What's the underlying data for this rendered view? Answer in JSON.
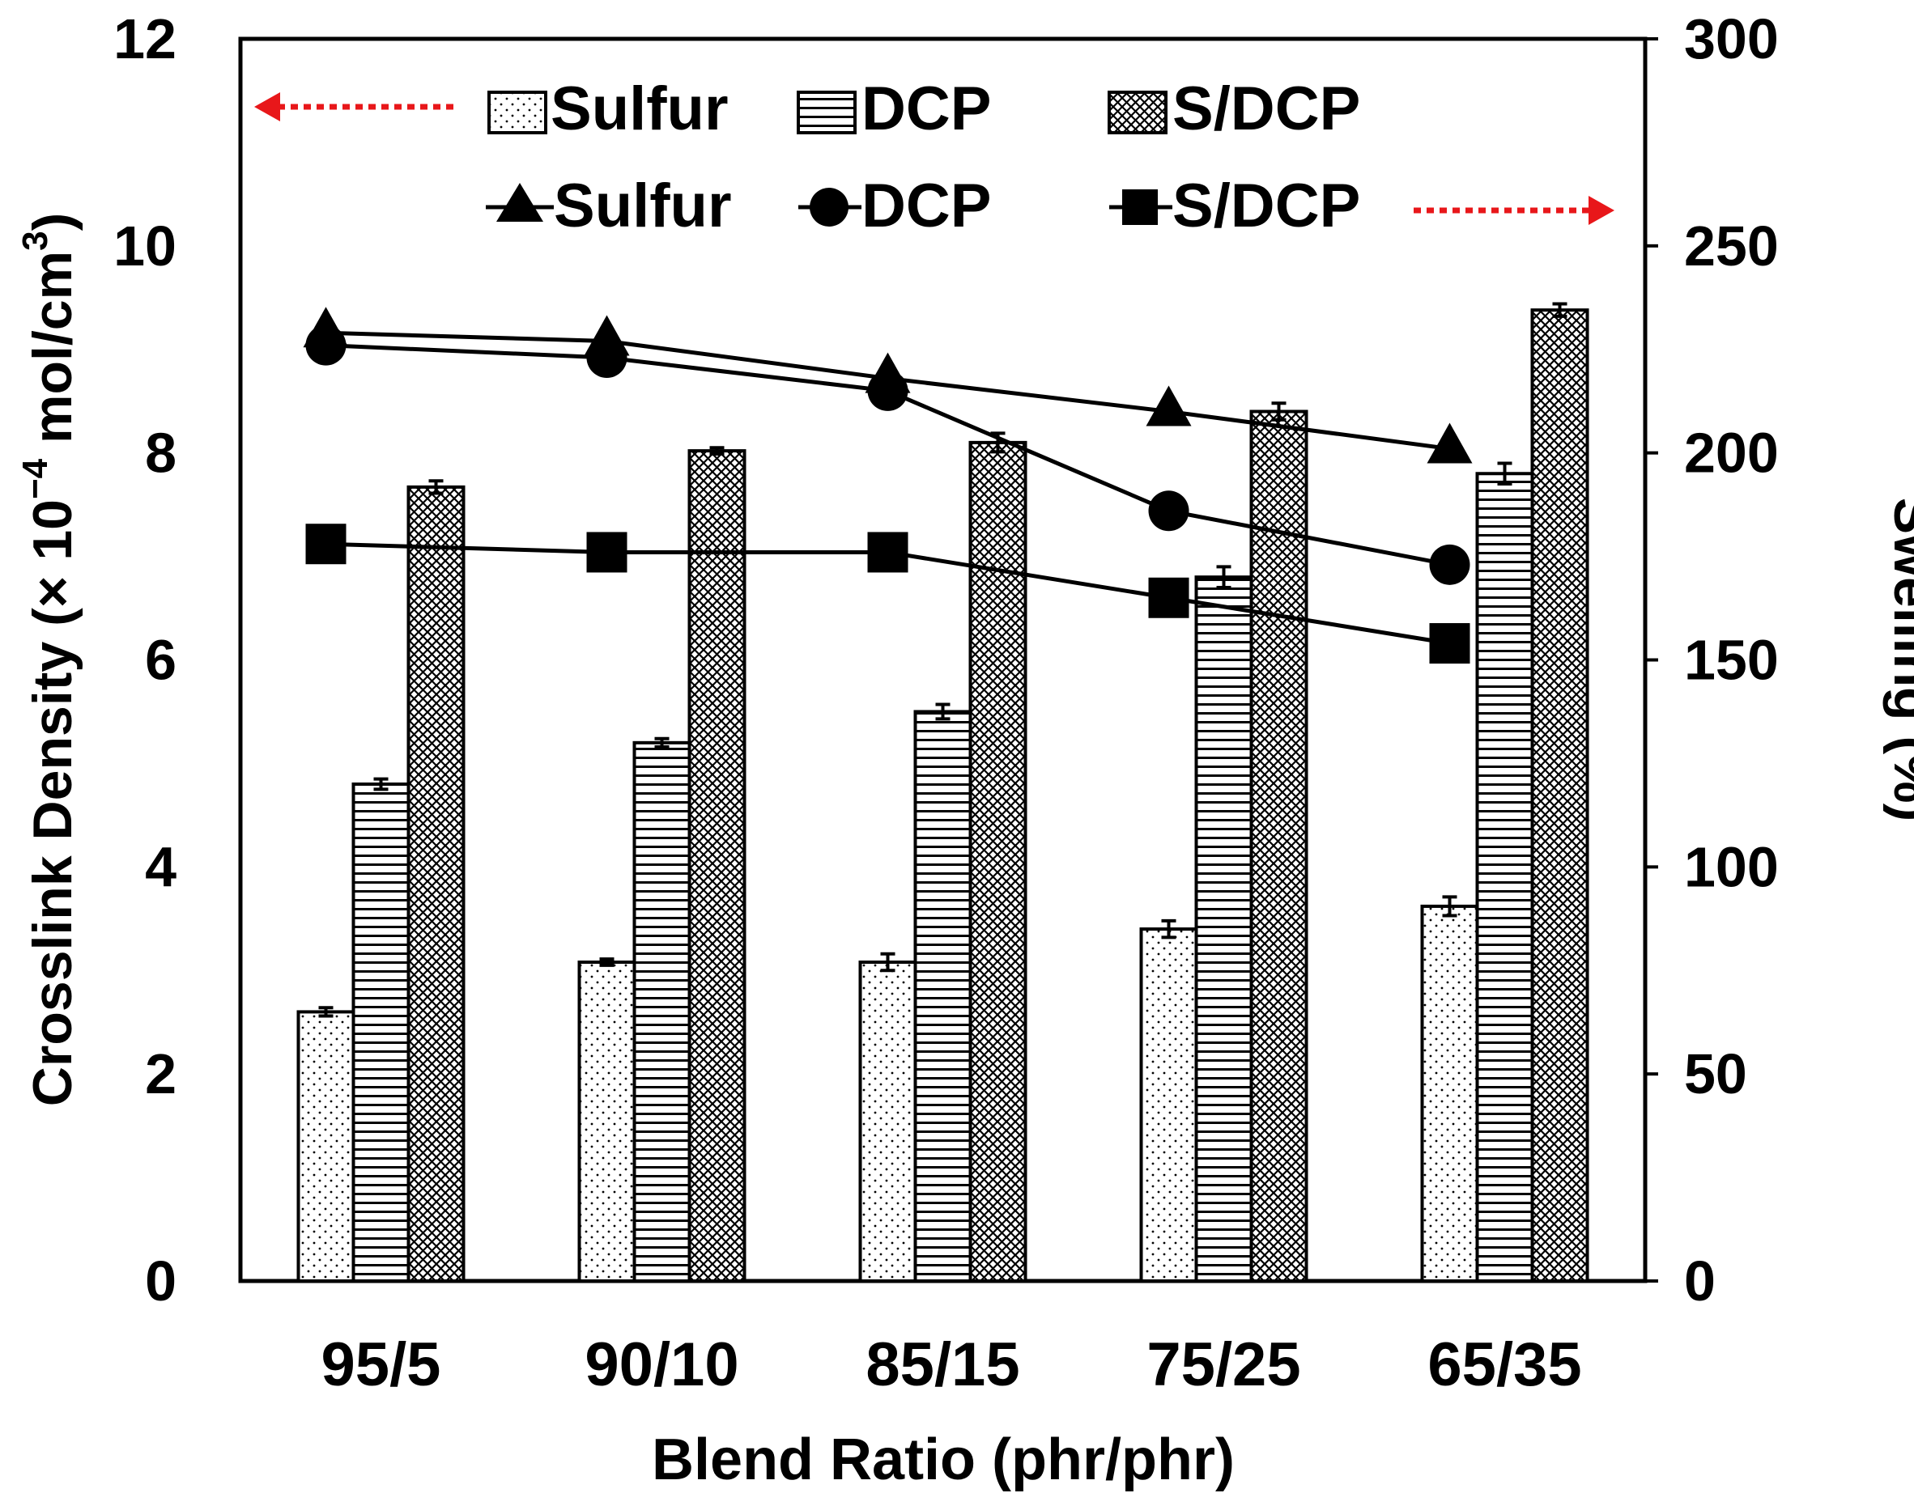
{
  "chart_data": {
    "type": "bar+line",
    "categories": [
      "95/5",
      "90/10",
      "85/15",
      "75/25",
      "65/35"
    ],
    "xlabel": "Blend Ratio (phr/phr)",
    "ylabel_left": "Crosslink Density (× 10",
    "ylabel_left_exp": "−4",
    "ylabel_left_unit": " mol/cm",
    "ylabel_left_unit_exp": "3",
    "ylabel_left_close": ")",
    "ylabel_right": "Swelling (%)",
    "ylim_left": [
      0,
      12
    ],
    "ylim_right": [
      0,
      300
    ],
    "yticks_left": [
      "0",
      "2",
      "4",
      "6",
      "8",
      "10",
      "12"
    ],
    "yticks_right": [
      "0",
      "50",
      "100",
      "150",
      "200",
      "250",
      "300"
    ],
    "bar_series": [
      {
        "name": "Sulfur",
        "pattern": "dots",
        "values": [
          2.6,
          3.08,
          3.08,
          3.4,
          3.62
        ],
        "errors": [
          0.04,
          0.03,
          0.08,
          0.08,
          0.09
        ]
      },
      {
        "name": "DCP",
        "pattern": "hlines",
        "values": [
          4.8,
          5.2,
          5.5,
          6.8,
          7.8
        ],
        "errors": [
          0.05,
          0.04,
          0.07,
          0.1,
          0.1
        ]
      },
      {
        "name": "S/DCP",
        "pattern": "crosshatch",
        "values": [
          7.67,
          8.02,
          8.1,
          8.4,
          9.38
        ],
        "errors": [
          0.06,
          0.03,
          0.09,
          0.08,
          0.06
        ]
      }
    ],
    "line_series": [
      {
        "name": "Sulfur",
        "marker": "triangle",
        "values": [
          229,
          227,
          218,
          210,
          201
        ]
      },
      {
        "name": "DCP",
        "marker": "circle",
        "values": [
          226,
          223,
          215,
          186,
          173
        ]
      },
      {
        "name": "S/DCP",
        "marker": "square",
        "values": [
          178,
          176,
          176,
          165,
          154
        ]
      }
    ],
    "legend": {
      "bars_axis": "left",
      "lines_axis": "right"
    },
    "colors": {
      "axis": "#000000",
      "arrow": "#e8171a"
    }
  }
}
